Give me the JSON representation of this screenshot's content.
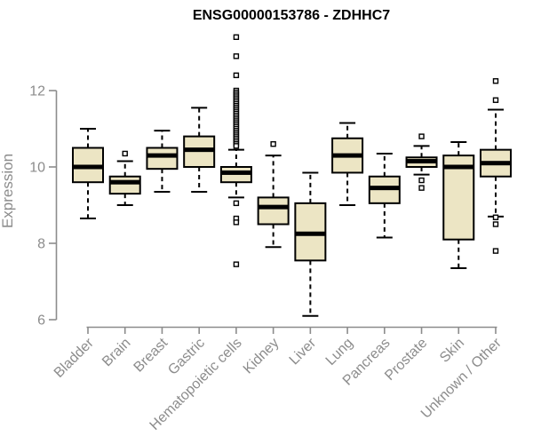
{
  "chart_data": {
    "type": "boxplot",
    "title": "ENSG00000153786 - ZDHHC7",
    "ylabel": "Expression",
    "xlabel": "",
    "ylim": [
      6,
      12
    ],
    "yticks": [
      "12",
      "10",
      "8",
      "6"
    ],
    "ytick_values": [
      12,
      10,
      8,
      6
    ],
    "grid": "off",
    "legend": "none",
    "categories": [
      "Bladder",
      "Brain",
      "Breast",
      "Gastric",
      "Hematopoietic cells",
      "Kidney",
      "Liver",
      "Lung",
      "Pancreas",
      "Prostate",
      "Skin",
      "Unknown / Other"
    ],
    "series": [
      {
        "name": "Bladder",
        "low": 8.65,
        "q1": 9.6,
        "median": 10.0,
        "q3": 10.5,
        "high": 11.0,
        "outliers": []
      },
      {
        "name": "Brain",
        "low": 9.0,
        "q1": 9.3,
        "median": 9.6,
        "q3": 9.75,
        "high": 10.15,
        "outliers": [
          10.35
        ]
      },
      {
        "name": "Breast",
        "low": 9.35,
        "q1": 9.95,
        "median": 10.3,
        "q3": 10.5,
        "high": 10.95,
        "outliers": []
      },
      {
        "name": "Gastric",
        "low": 9.35,
        "q1": 10.0,
        "median": 10.45,
        "q3": 10.8,
        "high": 11.55,
        "outliers": []
      },
      {
        "name": "Hematopoietic cells",
        "low": 9.2,
        "q1": 9.6,
        "median": 9.85,
        "q3": 10.0,
        "high": 10.45,
        "outliers": [
          13.4,
          12.9,
          12.4,
          12.0,
          11.95,
          11.9,
          11.85,
          11.8,
          11.75,
          11.7,
          11.65,
          11.6,
          11.55,
          11.5,
          11.45,
          11.4,
          11.35,
          11.3,
          11.25,
          11.2,
          11.15,
          11.1,
          11.05,
          11.0,
          10.95,
          10.9,
          10.85,
          10.8,
          10.75,
          10.7,
          10.65,
          10.6,
          10.55,
          9.05,
          8.65,
          8.55,
          7.45
        ]
      },
      {
        "name": "Kidney",
        "low": 7.9,
        "q1": 8.5,
        "median": 8.95,
        "q3": 9.2,
        "high": 10.3,
        "outliers": [
          10.6
        ]
      },
      {
        "name": "Liver",
        "low": 6.1,
        "q1": 7.55,
        "median": 8.25,
        "q3": 9.05,
        "high": 9.85,
        "outliers": []
      },
      {
        "name": "Lung",
        "low": 9.0,
        "q1": 9.85,
        "median": 10.3,
        "q3": 10.75,
        "high": 11.15,
        "outliers": []
      },
      {
        "name": "Pancreas",
        "low": 8.15,
        "q1": 9.05,
        "median": 9.45,
        "q3": 9.75,
        "high": 10.35,
        "outliers": []
      },
      {
        "name": "Prostate",
        "low": 9.8,
        "q1": 10.0,
        "median": 10.15,
        "q3": 10.25,
        "high": 10.55,
        "outliers": [
          10.8,
          9.65,
          9.45
        ]
      },
      {
        "name": "Skin",
        "low": 7.35,
        "q1": 8.1,
        "median": 10.0,
        "q3": 10.3,
        "high": 10.65,
        "outliers": []
      },
      {
        "name": "Unknown / Other",
        "low": 8.7,
        "q1": 9.75,
        "median": 10.1,
        "q3": 10.45,
        "high": 11.5,
        "outliers": [
          12.25,
          11.75,
          8.68,
          8.5,
          7.8
        ]
      }
    ],
    "colors": {
      "box_fill": "#ECE5C4",
      "box_border": "#000000",
      "median": "#000000",
      "whisker": "#000000",
      "outlier_stroke": "#000000",
      "outlier_fill": "#ffffff",
      "axis": "#8c8c8c",
      "title": "#000000",
      "background": "#ffffff"
    }
  }
}
